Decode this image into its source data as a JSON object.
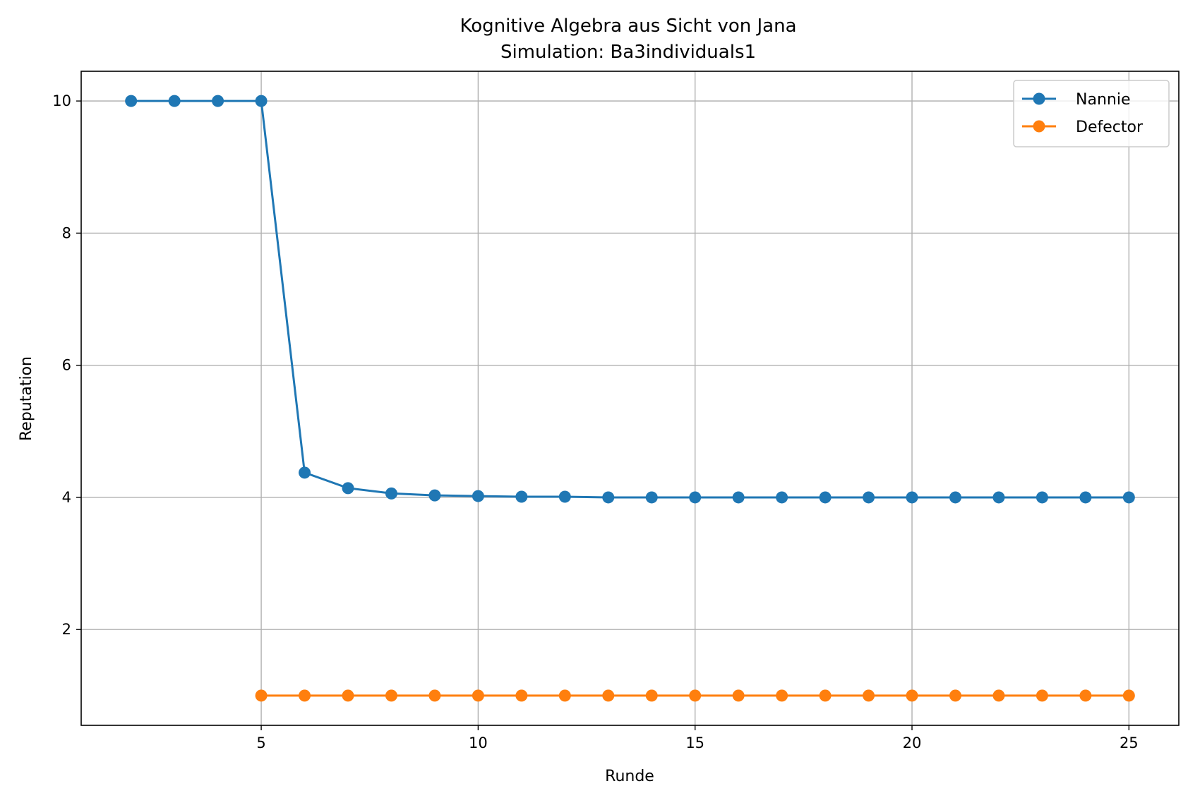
{
  "chart_data": {
    "type": "line",
    "title": "Kognitive Algebra aus Sicht von Jana",
    "subtitle": "Simulation: Ba3individuals1",
    "xlabel": "Runde",
    "ylabel": "Reputation",
    "xlim": [
      0.85,
      26.15
    ],
    "ylim": [
      0.55,
      10.45
    ],
    "xticks": [
      5,
      10,
      15,
      20,
      25
    ],
    "yticks": [
      2,
      4,
      6,
      8,
      10
    ],
    "grid": true,
    "legend_position": "top-right",
    "series": [
      {
        "name": "Nannie",
        "color": "#1f77b4",
        "marker": "circle",
        "x": [
          2,
          3,
          4,
          5,
          6,
          7,
          8,
          9,
          10,
          11,
          12,
          13,
          14,
          15,
          16,
          17,
          18,
          19,
          20,
          21,
          22,
          23,
          24,
          25
        ],
        "y": [
          10,
          10,
          10,
          10,
          4.375,
          4.14,
          4.06,
          4.03,
          4.02,
          4.01,
          4.01,
          4.0,
          4.0,
          4.0,
          4.0,
          4.0,
          4.0,
          4.0,
          4.0,
          4.0,
          4.0,
          4.0,
          4.0,
          4.0
        ]
      },
      {
        "name": "Defector",
        "color": "#ff7f0e",
        "marker": "circle",
        "x": [
          5,
          6,
          7,
          8,
          9,
          10,
          11,
          12,
          13,
          14,
          15,
          16,
          17,
          18,
          19,
          20,
          21,
          22,
          23,
          24,
          25
        ],
        "y": [
          1,
          1,
          1,
          1,
          1,
          1,
          1,
          1,
          1,
          1,
          1,
          1,
          1,
          1,
          1,
          1,
          1,
          1,
          1,
          1,
          1
        ]
      }
    ]
  }
}
